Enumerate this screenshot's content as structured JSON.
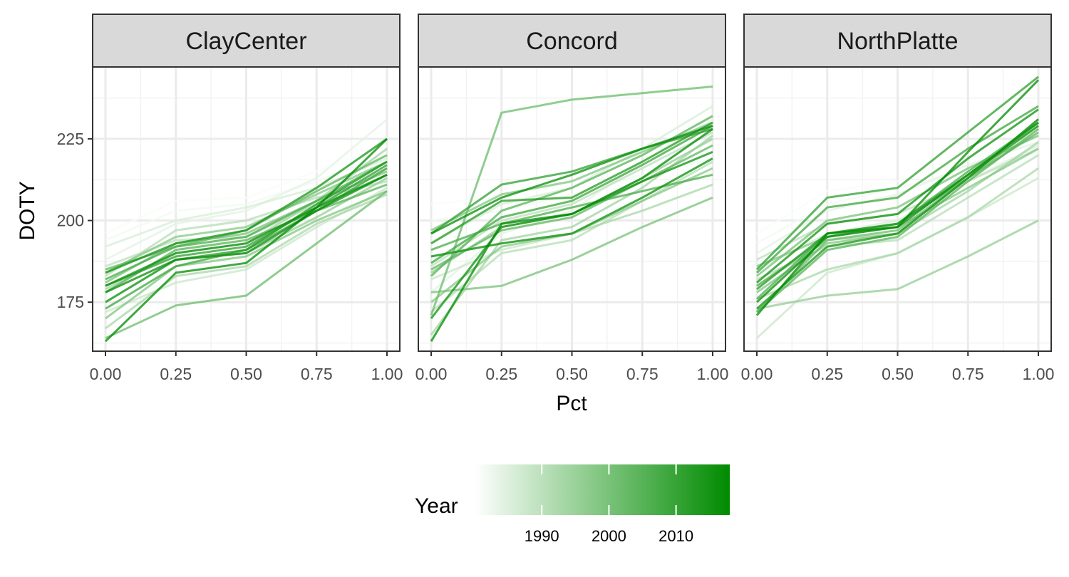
{
  "chart_data": {
    "type": "line",
    "facet_by": "Site",
    "xlabel": "Pct",
    "ylabel": "DOTY",
    "x": [
      0,
      0.25,
      0.5,
      0.75,
      1.0
    ],
    "x_tick_labels": [
      "0.00",
      "0.25",
      "0.50",
      "0.75",
      "1.00"
    ],
    "y_ticks": [
      175,
      200,
      225
    ],
    "ylim": [
      160,
      247
    ],
    "colors": {
      "low": "#ffffff",
      "high": "#008b00",
      "panel_border": "#333333",
      "strip_bg": "#d9d9d9",
      "grid": "#ebebeb"
    },
    "legend": {
      "title": "Year",
      "position": "bottom",
      "tick_labels": [
        "1990",
        "2000",
        "2010"
      ],
      "tick_values": [
        1990,
        2000,
        2010
      ],
      "range": [
        1980,
        2018
      ]
    },
    "panels": [
      {
        "name": "ClayCenter",
        "series": [
          {
            "year": 1981,
            "values": [
              196,
              206,
              207,
              215,
              223
            ]
          },
          {
            "year": 1982,
            "values": [
              194,
              203,
              205,
              212,
              220
            ]
          },
          {
            "year": 1984,
            "values": [
              188,
              199,
              203,
              213,
              231
            ]
          },
          {
            "year": 1986,
            "values": [
              192,
              200,
              204,
              210,
              219
            ]
          },
          {
            "year": 1988,
            "values": [
              172,
              181,
              185,
              198,
              210
            ]
          },
          {
            "year": 1990,
            "values": [
              186,
              194,
              195,
              205,
              216
            ]
          },
          {
            "year": 1991,
            "values": [
              183,
              197,
              200,
              207,
              212
            ]
          },
          {
            "year": 1993,
            "values": [
              167,
              183,
              186,
              199,
              208
            ]
          },
          {
            "year": 1994,
            "values": [
              179,
              190,
              193,
              206,
              222
            ]
          },
          {
            "year": 1996,
            "values": [
              175,
              188,
              190,
              201,
              213
            ]
          },
          {
            "year": 1998,
            "values": [
              184,
              195,
              198,
              208,
              218
            ]
          },
          {
            "year": 1999,
            "values": [
              170,
              186,
              189,
              200,
              209
            ]
          },
          {
            "year": 2000,
            "values": [
              181,
              193,
              196,
              206,
              215
            ]
          },
          {
            "year": 2002,
            "values": [
              164,
              174,
              177,
              193,
              209
            ]
          },
          {
            "year": 2004,
            "values": [
              185,
              192,
              197,
              209,
              220
            ]
          },
          {
            "year": 2005,
            "values": [
              178,
              191,
              194,
              203,
              211
            ]
          },
          {
            "year": 2007,
            "values": [
              182,
              192,
              195,
              206,
              218
            ]
          },
          {
            "year": 2009,
            "values": [
              173,
              186,
              191,
              203,
              216
            ]
          },
          {
            "year": 2011,
            "values": [
              180,
              189,
              192,
              204,
              217
            ]
          },
          {
            "year": 2013,
            "values": [
              175,
              188,
              191,
              205,
              218
            ]
          },
          {
            "year": 2015,
            "values": [
              184,
              193,
              197,
              210,
              225
            ]
          },
          {
            "year": 2016,
            "values": [
              180,
              190,
              193,
              204,
              214
            ]
          },
          {
            "year": 2017,
            "values": [
              178,
              188,
              190,
              203,
              214
            ]
          },
          {
            "year": 2018,
            "values": [
              163,
              184,
              187,
              204,
              225
            ]
          }
        ]
      },
      {
        "name": "Concord",
        "series": [
          {
            "year": 1981,
            "values": [
              205,
              207,
              212,
              221,
              229
            ]
          },
          {
            "year": 1982,
            "values": [
              200,
              203,
              208,
              214,
              219
            ]
          },
          {
            "year": 1984,
            "values": [
              178,
              196,
              203,
              218,
              231
            ]
          },
          {
            "year": 1986,
            "values": [
              193,
              205,
              210,
              222,
              235
            ]
          },
          {
            "year": 1988,
            "values": [
              182,
              191,
              196,
              207,
              219
            ]
          },
          {
            "year": 1990,
            "values": [
              186,
              200,
              205,
              216,
              227
            ]
          },
          {
            "year": 1991,
            "values": [
              172,
              190,
              194,
              206,
              218
            ]
          },
          {
            "year": 1993,
            "values": [
              189,
              193,
              196,
              203,
              211
            ]
          },
          {
            "year": 1994,
            "values": [
              165,
              194,
              198,
              210,
              226
            ]
          },
          {
            "year": 1996,
            "values": [
              184,
              198,
              202,
              213,
              225
            ]
          },
          {
            "year": 1998,
            "values": [
              175,
              192,
              196,
              206,
              216
            ]
          },
          {
            "year": 1999,
            "values": [
              197,
              208,
              212,
              221,
              230
            ]
          },
          {
            "year": 2000,
            "values": [
              178,
              180,
              188,
              198,
              207
            ]
          },
          {
            "year": 2002,
            "values": [
              171,
              233,
              237,
              239,
              241
            ]
          },
          {
            "year": 2004,
            "values": [
              185,
              197,
              201,
              212,
              223
            ]
          },
          {
            "year": 2005,
            "values": [
              183,
              203,
              210,
              220,
              232
            ]
          },
          {
            "year": 2007,
            "values": [
              191,
              199,
              204,
              209,
              214
            ]
          },
          {
            "year": 2009,
            "values": [
              187,
              201,
              206,
              217,
              229
            ]
          },
          {
            "year": 2011,
            "values": [
              196,
              211,
              215,
              222,
              228
            ]
          },
          {
            "year": 2013,
            "values": [
              193,
              206,
              207,
              218,
              230
            ]
          },
          {
            "year": 2015,
            "values": [
              189,
              193,
              196,
              207,
              219
            ]
          },
          {
            "year": 2016,
            "values": [
              170,
              198,
              202,
              212,
              221
            ]
          },
          {
            "year": 2017,
            "values": [
              196,
              207,
              214,
              222,
              229
            ]
          },
          {
            "year": 2018,
            "values": [
              163,
              199,
              202,
              213,
              228
            ]
          }
        ]
      },
      {
        "name": "NorthPlatte",
        "series": [
          {
            "year": 1981,
            "values": [
              196,
              209,
              212,
              219,
              225
            ]
          },
          {
            "year": 1982,
            "values": [
              193,
              205,
              210,
              215,
              221
            ]
          },
          {
            "year": 1984,
            "values": [
              190,
              203,
              208,
              217,
              224
            ]
          },
          {
            "year": 1986,
            "values": [
              185,
              196,
              200,
              212,
              223
            ]
          },
          {
            "year": 1988,
            "values": [
              164,
              184,
              190,
              201,
              213
            ]
          },
          {
            "year": 1990,
            "values": [
              188,
              199,
              202,
              212,
              222
            ]
          },
          {
            "year": 1991,
            "values": [
              182,
              192,
              194,
              207,
              220
            ]
          },
          {
            "year": 1993,
            "values": [
              176,
              185,
              190,
              201,
              216
            ]
          },
          {
            "year": 1994,
            "values": [
              180,
              194,
              196,
              209,
              224
            ]
          },
          {
            "year": 1996,
            "values": [
              173,
              177,
              179,
              189,
              200
            ]
          },
          {
            "year": 1998,
            "values": [
              186,
              195,
              198,
              210,
              222
            ]
          },
          {
            "year": 1999,
            "values": [
              178,
              193,
              196,
              213,
              231
            ]
          },
          {
            "year": 2000,
            "values": [
              183,
              200,
              204,
              216,
              226
            ]
          },
          {
            "year": 2002,
            "values": [
              172,
              194,
              197,
              213,
              229
            ]
          },
          {
            "year": 2004,
            "values": [
              180,
              195,
              199,
              213,
              227
            ]
          },
          {
            "year": 2005,
            "values": [
              172,
              191,
              195,
              212,
              228
            ]
          },
          {
            "year": 2007,
            "values": [
              176,
              196,
              199,
              215,
              230
            ]
          },
          {
            "year": 2009,
            "values": [
              184,
              204,
              207,
              222,
              235
            ]
          },
          {
            "year": 2011,
            "values": [
              185,
              207,
              210,
              227,
              244
            ]
          },
          {
            "year": 2013,
            "values": [
              179,
              196,
              199,
              214,
              229
            ]
          },
          {
            "year": 2015,
            "values": [
              173,
              192,
              196,
              213,
              231
            ]
          },
          {
            "year": 2016,
            "values": [
              181,
              199,
              202,
              219,
              234
            ]
          },
          {
            "year": 2017,
            "values": [
              175,
              195,
              198,
              214,
              230
            ]
          },
          {
            "year": 2018,
            "values": [
              171,
              196,
              198,
              221,
              243
            ]
          }
        ]
      }
    ]
  }
}
